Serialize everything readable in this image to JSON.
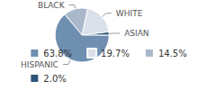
{
  "chart_data": {
    "type": "pie",
    "categories": [
      "BLACK",
      "WHITE",
      "ASIAN",
      "HISPANIC"
    ],
    "values": [
      14.5,
      19.7,
      2.0,
      63.8
    ],
    "value_labels": [
      "14.5%",
      "19.7%",
      "2.0%",
      "63.8%"
    ],
    "colors": [
      "#a9b9cb",
      "#d9e0e9",
      "#2c5479",
      "#6f8fb1"
    ],
    "legend": "bottom"
  }
}
